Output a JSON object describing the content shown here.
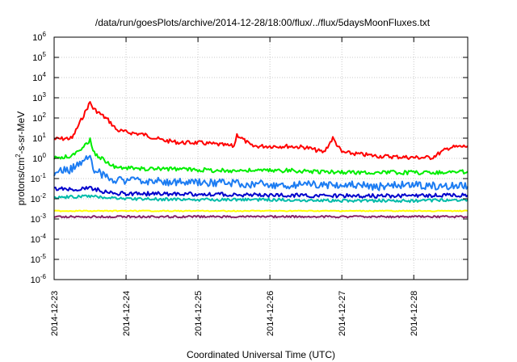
{
  "chart_data": {
    "type": "line",
    "title": "/data/run/goesPlots/archive/2014-12-28/18:00/flux/../flux/5daysMoonFluxes.txt",
    "xlabel": "Coordinated Universal Time (UTC)",
    "ylabel": "protons/cm²-s-sr-MeV",
    "ylabel_parts": {
      "pre": "protons/cm",
      "sup": "2",
      "post": "-s-sr-MeV"
    },
    "yscale": "log",
    "ylim": [
      1e-06,
      1000000.0
    ],
    "y_ticks": [
      {
        "base": "10",
        "exp": "-6",
        "value": 1e-06
      },
      {
        "base": "10",
        "exp": "-5",
        "value": 1e-05
      },
      {
        "base": "10",
        "exp": "-4",
        "value": 0.0001
      },
      {
        "base": "10",
        "exp": "-3",
        "value": 0.001
      },
      {
        "base": "10",
        "exp": "-2",
        "value": 0.01
      },
      {
        "base": "10",
        "exp": "-1",
        "value": 0.1
      },
      {
        "base": "10",
        "exp": "0",
        "value": 1
      },
      {
        "base": "10",
        "exp": "1",
        "value": 10
      },
      {
        "base": "10",
        "exp": "2",
        "value": 100
      },
      {
        "base": "10",
        "exp": "3",
        "value": 1000
      },
      {
        "base": "10",
        "exp": "4",
        "value": 10000
      },
      {
        "base": "10",
        "exp": "5",
        "value": 100000
      },
      {
        "base": "10",
        "exp": "6",
        "value": 1000000
      }
    ],
    "xlim": [
      "2014-12-23",
      "2014-12-28 18:00"
    ],
    "x_ticks": [
      "2014-12-23",
      "2014-12-24",
      "2014-12-25",
      "2014-12-26",
      "2014-12-27",
      "2014-12-28"
    ],
    "grid": true,
    "series": [
      {
        "color": "#ff0000",
        "x": [
          "2014-12-23 00:00",
          "2014-12-23 06:00",
          "2014-12-23 12:00",
          "2014-12-23 13:00",
          "2014-12-23 18:00",
          "2014-12-23 21:00",
          "2014-12-24 00:00",
          "2014-12-24 06:00",
          "2014-12-24 12:00",
          "2014-12-24 18:00",
          "2014-12-25 00:00",
          "2014-12-25 06:00",
          "2014-12-25 12:00",
          "2014-12-25 13:00",
          "2014-12-25 18:00",
          "2014-12-26 00:00",
          "2014-12-26 06:00",
          "2014-12-26 12:00",
          "2014-12-26 18:00",
          "2014-12-26 21:00",
          "2014-12-27 00:00",
          "2014-12-27 06:00",
          "2014-12-27 12:00",
          "2014-12-27 18:00",
          "2014-12-28 00:00",
          "2014-12-28 06:00",
          "2014-12-28 12:00",
          "2014-12-28 18:00"
        ],
        "y": [
          9,
          10,
          600,
          300,
          80,
          25,
          20,
          15,
          8,
          6,
          6,
          5,
          4,
          15,
          4,
          4,
          4,
          3.5,
          2,
          10,
          2,
          1.6,
          1.3,
          1.2,
          1.1,
          1.1,
          3.5,
          4
        ]
      },
      {
        "color": "#00ee00",
        "x": [
          "2014-12-23 00:00",
          "2014-12-23 06:00",
          "2014-12-23 12:00",
          "2014-12-23 13:00",
          "2014-12-23 18:00",
          "2014-12-23 21:00",
          "2014-12-24 06:00",
          "2014-12-24 18:00",
          "2014-12-25 06:00",
          "2014-12-25 18:00",
          "2014-12-26 06:00",
          "2014-12-26 18:00",
          "2014-12-27 06:00",
          "2014-12-27 18:00",
          "2014-12-28 06:00",
          "2014-12-28 18:00"
        ],
        "y": [
          1.0,
          1.3,
          8,
          2,
          0.6,
          0.35,
          0.3,
          0.3,
          0.25,
          0.25,
          0.25,
          0.22,
          0.2,
          0.2,
          0.2,
          0.22
        ]
      },
      {
        "color": "#1c7cf2",
        "x": [
          "2014-12-23 00:00",
          "2014-12-23 06:00",
          "2014-12-23 12:00",
          "2014-12-23 13:00",
          "2014-12-23 18:00",
          "2014-12-24 00:00",
          "2014-12-24 12:00",
          "2014-12-25 00:00",
          "2014-12-25 12:00",
          "2014-12-26 00:00",
          "2014-12-26 12:00",
          "2014-12-27 00:00",
          "2014-12-27 12:00",
          "2014-12-28 00:00",
          "2014-12-28 12:00",
          "2014-12-28 18:00"
        ],
        "y": [
          0.2,
          0.3,
          1.5,
          0.3,
          0.1,
          0.08,
          0.07,
          0.06,
          0.06,
          0.05,
          0.05,
          0.05,
          0.04,
          0.05,
          0.04,
          0.04
        ]
      },
      {
        "color": "#0000cc",
        "x": [
          "2014-12-23 00:00",
          "2014-12-23 06:00",
          "2014-12-23 12:00",
          "2014-12-23 18:00",
          "2014-12-24 00:00",
          "2014-12-25 00:00",
          "2014-12-26 00:00",
          "2014-12-27 00:00",
          "2014-12-28 00:00",
          "2014-12-28 18:00"
        ],
        "y": [
          0.03,
          0.03,
          0.035,
          0.02,
          0.018,
          0.017,
          0.015,
          0.014,
          0.014,
          0.015
        ]
      },
      {
        "color": "#00bbaa",
        "x": [
          "2014-12-23 00:00",
          "2014-12-23 12:00",
          "2014-12-24 00:00",
          "2014-12-25 00:00",
          "2014-12-26 00:00",
          "2014-12-27 00:00",
          "2014-12-28 00:00",
          "2014-12-28 18:00"
        ],
        "y": [
          0.012,
          0.013,
          0.01,
          0.009,
          0.009,
          0.008,
          0.008,
          0.009
        ]
      },
      {
        "color": "#ffff00",
        "x": [
          "2014-12-23 00:00",
          "2014-12-28 18:00"
        ],
        "y": [
          0.0025,
          0.0025
        ]
      },
      {
        "color": "#882266",
        "x": [
          "2014-12-23 00:00",
          "2014-12-28 18:00"
        ],
        "y": [
          0.0013,
          0.0013
        ]
      }
    ]
  }
}
